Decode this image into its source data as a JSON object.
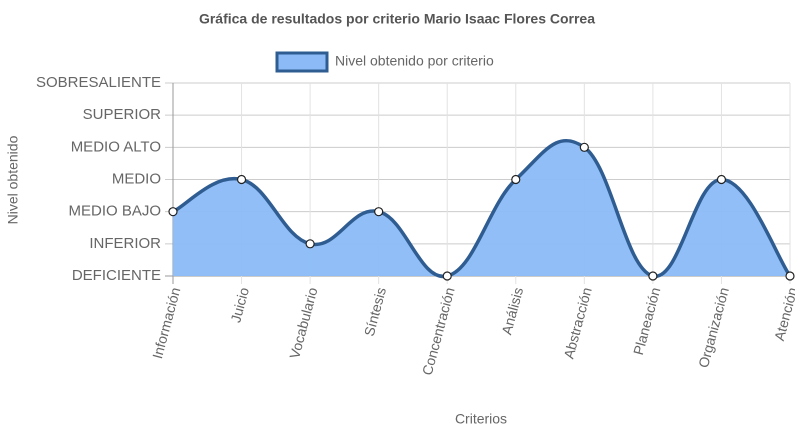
{
  "chart_data": {
    "type": "line",
    "title": "Gráfica de resultados por criterio Mario Isaac Flores Correa",
    "x_label": "Criterios",
    "y_label": "Nivel obtenido",
    "categories": [
      "Información",
      "Juicio",
      "Vocabulario",
      "Síntesis",
      "Concentración",
      "Análisis",
      "Abstracción",
      "Planeación",
      "Organización",
      "Atención"
    ],
    "series": [
      {
        "name": "Nivel obtenido por criterio",
        "color": "#2f5d91",
        "fill": "#8bbaf6",
        "values": [
          2,
          3,
          1,
          2,
          0,
          3,
          4,
          0,
          3,
          0
        ]
      }
    ],
    "ylim": [
      0,
      6
    ],
    "yticks": [
      {
        "value": 0,
        "label": "DEFICIENTE"
      },
      {
        "value": 1,
        "label": "INFERIOR"
      },
      {
        "value": 2,
        "label": "MEDIO BAJO"
      },
      {
        "value": 3,
        "label": "MEDIO"
      },
      {
        "value": 4,
        "label": "MEDIO ALTO"
      },
      {
        "value": 5,
        "label": "SUPERIOR"
      },
      {
        "value": 6,
        "label": "SOBRESALIENTE"
      }
    ],
    "grid": true,
    "legend": "top"
  }
}
